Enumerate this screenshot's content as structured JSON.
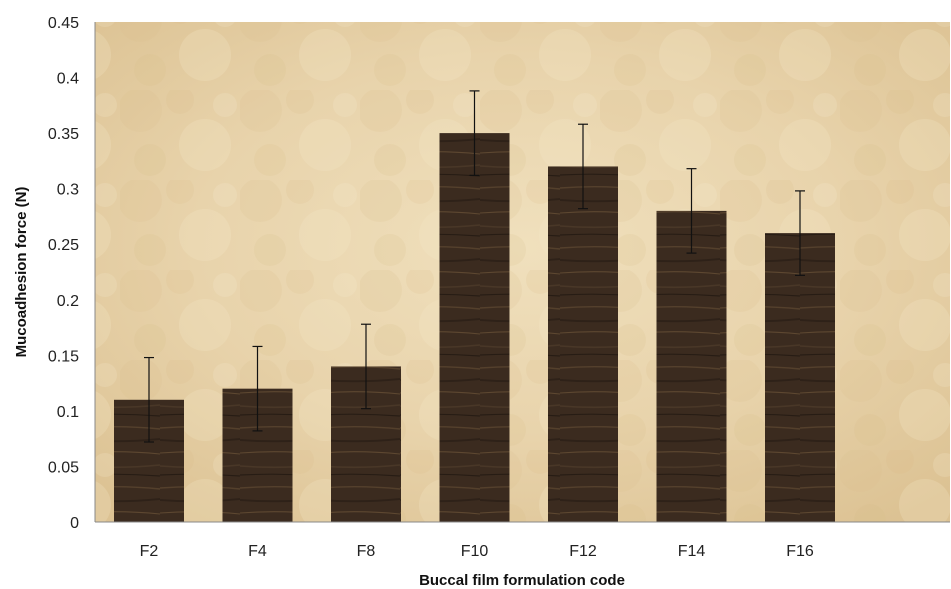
{
  "chart_data": {
    "type": "bar",
    "title": "",
    "xlabel": "Buccal film formulation code",
    "ylabel": "Mucoadhesion force (N)",
    "categories": [
      "F2",
      "F4",
      "F8",
      "F10",
      "F12",
      "F14",
      "F16"
    ],
    "values": [
      0.11,
      0.12,
      0.14,
      0.35,
      0.32,
      0.28,
      0.26
    ],
    "errors": [
      0.038,
      0.038,
      0.038,
      0.038,
      0.038,
      0.038,
      0.038
    ],
    "ylim": [
      0,
      0.45
    ],
    "yticks": [
      "0",
      "0.05",
      "0.1",
      "0.15",
      "0.2",
      "0.25",
      "0.3",
      "0.35",
      "0.4",
      "0.45"
    ],
    "grid": false,
    "legend": "none",
    "colors": {
      "plot_background": "#e9d6b1",
      "bar_fill": "#3a2a1e",
      "error_bar": "#111111"
    }
  }
}
